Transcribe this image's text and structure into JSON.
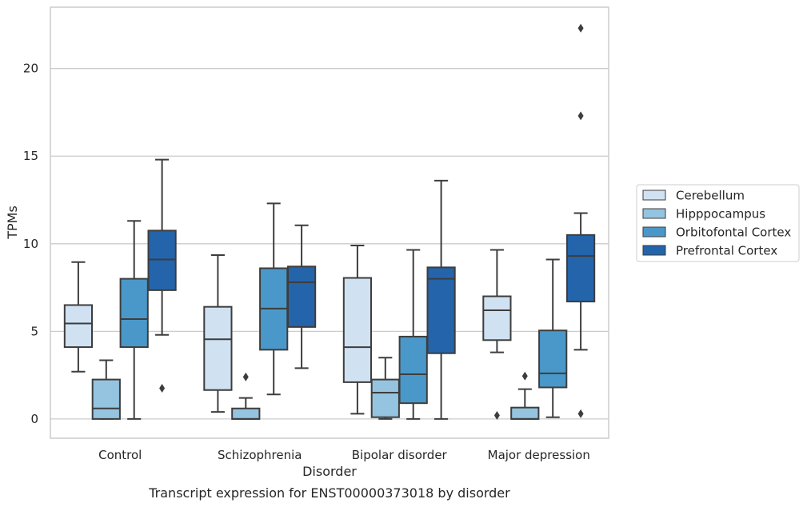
{
  "caption": "Transcript expression for ENST00000373018 by disorder",
  "chart_data": {
    "type": "box",
    "xlabel": "Disorder",
    "ylabel": "TPMs",
    "ylim": [
      -1.1,
      23.5
    ],
    "yticks": [
      0,
      5,
      10,
      15,
      20
    ],
    "grid": "horizontal",
    "legend_position": "right",
    "categories": [
      "Control",
      "Schizophrenia",
      "Bipolar disorder",
      "Major depression"
    ],
    "series": [
      {
        "name": "Cerebellum",
        "color": "#d0e1f2",
        "boxes": [
          {
            "whislo": 2.7,
            "q1": 4.1,
            "med": 5.45,
            "q3": 6.5,
            "whishi": 8.95,
            "fliers": []
          },
          {
            "whislo": 0.4,
            "q1": 1.65,
            "med": 4.55,
            "q3": 6.4,
            "whishi": 9.35,
            "fliers": []
          },
          {
            "whislo": 0.3,
            "q1": 2.1,
            "med": 4.1,
            "q3": 8.05,
            "whishi": 9.9,
            "fliers": []
          },
          {
            "whislo": 3.8,
            "q1": 4.5,
            "med": 6.2,
            "q3": 7.0,
            "whishi": 9.65,
            "fliers": [
              0.2
            ]
          }
        ]
      },
      {
        "name": "Hipppocampus",
        "color": "#94c4df",
        "boxes": [
          {
            "whislo": 0.0,
            "q1": 0.0,
            "med": 0.6,
            "q3": 2.25,
            "whishi": 3.35,
            "fliers": []
          },
          {
            "whislo": 0.0,
            "q1": 0.0,
            "med": 0.0,
            "q3": 0.6,
            "whishi": 1.2,
            "fliers": [
              2.4
            ]
          },
          {
            "whislo": 0.0,
            "q1": 0.1,
            "med": 1.5,
            "q3": 2.25,
            "whishi": 3.5,
            "fliers": []
          },
          {
            "whislo": 0.0,
            "q1": 0.0,
            "med": 0.0,
            "q3": 0.65,
            "whishi": 1.7,
            "fliers": [
              2.45
            ]
          }
        ]
      },
      {
        "name": "Orbitofontal Cortex",
        "color": "#4a98c9",
        "boxes": [
          {
            "whislo": 0.0,
            "q1": 4.1,
            "med": 5.7,
            "q3": 8.0,
            "whishi": 11.3,
            "fliers": []
          },
          {
            "whislo": 1.4,
            "q1": 3.95,
            "med": 6.3,
            "q3": 8.6,
            "whishi": 12.3,
            "fliers": []
          },
          {
            "whislo": 0.0,
            "q1": 0.9,
            "med": 2.55,
            "q3": 4.7,
            "whishi": 9.65,
            "fliers": []
          },
          {
            "whislo": 0.1,
            "q1": 1.8,
            "med": 2.6,
            "q3": 5.05,
            "whishi": 9.1,
            "fliers": []
          }
        ]
      },
      {
        "name": "Prefrontal Cortex",
        "color": "#2464ab",
        "boxes": [
          {
            "whislo": 4.8,
            "q1": 7.35,
            "med": 9.1,
            "q3": 10.75,
            "whishi": 14.8,
            "fliers": [
              1.75
            ]
          },
          {
            "whislo": 2.9,
            "q1": 5.25,
            "med": 7.8,
            "q3": 8.7,
            "whishi": 11.05,
            "fliers": []
          },
          {
            "whislo": 0.0,
            "q1": 3.75,
            "med": 8.0,
            "q3": 8.65,
            "whishi": 13.6,
            "fliers": []
          },
          {
            "whislo": 3.95,
            "q1": 6.7,
            "med": 9.3,
            "q3": 10.5,
            "whishi": 11.75,
            "fliers": [
              0.3,
              17.3,
              22.3
            ]
          }
        ]
      }
    ]
  }
}
